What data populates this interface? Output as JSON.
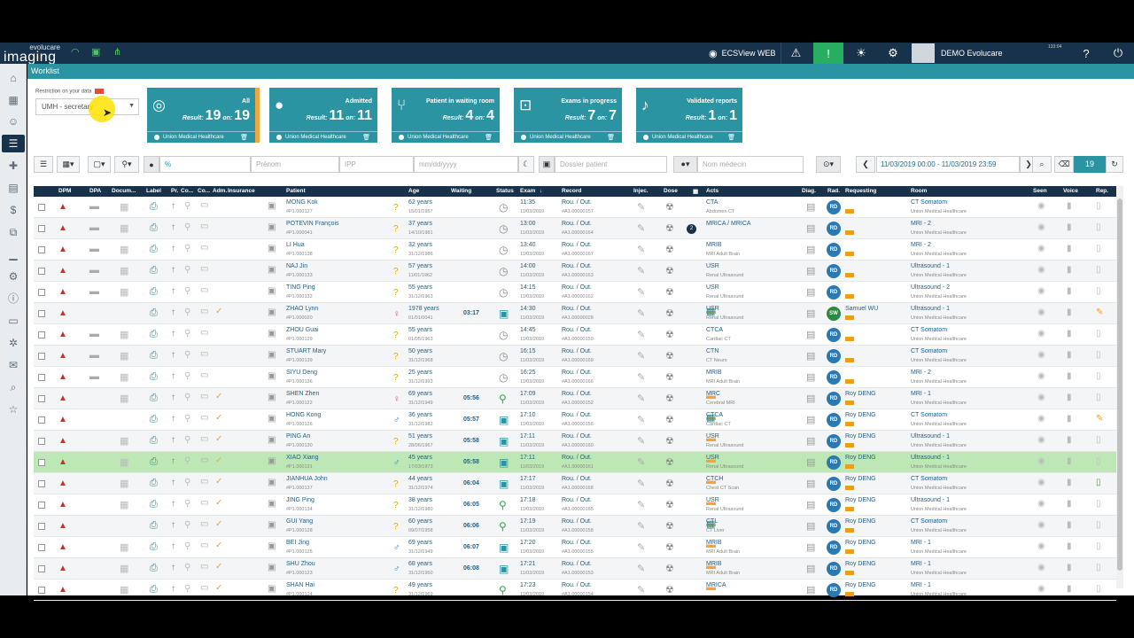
{
  "topbar": {
    "brand_top": "evolucare",
    "brand_main": "imaging",
    "app_name": "ECSView WEB",
    "user": "DEMO Evolucare",
    "clock": "133:04"
  },
  "worklist_title": "Worklist",
  "restriction": {
    "label": "Restriction on your data",
    "value": "UMH - secretary"
  },
  "cards": [
    {
      "title": "All",
      "result": "19",
      "sur": "19",
      "org": "Union Medical Healthcare",
      "icon": "all-icon"
    },
    {
      "title": "Admitted",
      "result": "11",
      "sur": "11",
      "org": "Union Medical Healthcare",
      "icon": "person-icon"
    },
    {
      "title": "Patient in waiting room",
      "result": "4",
      "sur": "4",
      "org": "Union Medical Healthcare",
      "icon": "waiting-icon"
    },
    {
      "title": "Exams in progress",
      "result": "7",
      "sur": "7",
      "org": "Union Medical Healthcare",
      "icon": "exam-icon"
    },
    {
      "title": "Validated reports",
      "result": "1",
      "sur": "1",
      "org": "Union Medical Healthcare",
      "icon": "mic-icon"
    }
  ],
  "result_label": "Result:",
  "sur_label": "on:",
  "filters": {
    "pct": "%",
    "prenom": "Prénom",
    "ipp": "IPP",
    "date": "mm/dd/yyyy",
    "dossier": "Dossier patient",
    "medecin": "Nom médecin",
    "daterange": "11/03/2019 00:00 - 11/03/2019 23:59",
    "count": "19"
  },
  "columns": {
    "dpm": "DPM",
    "dpa": "DPA",
    "doc": "Docum...",
    "label": "Label",
    "pr": "Pr.",
    "co": "Co...",
    "co2": "Co...",
    "adm": "Adm.",
    "ins": "Insurance",
    "patient": "Patient",
    "age": "Age",
    "waiting": "Waiting",
    "status": "Status",
    "exam": "Exam",
    "record": "Record",
    "injec": "Injec.",
    "dose": "Dose",
    "acts": "Acts",
    "diag": "Diag.",
    "rad": "Rad.",
    "requesting": "Requesting",
    "room": "Room",
    "seen": "Seen",
    "voice": "Voice",
    "rep": "Rep."
  },
  "rows": [
    {
      "name": "MONG Kok",
      "id": "#P1.000127",
      "sex": "u",
      "age": "62 years",
      "dob": "15/01/1957",
      "wait": "",
      "status": "clock",
      "time": "11:35",
      "date": "11/03/2019",
      "rec": "Rou. / Out.",
      "recn": "#A1.00000157",
      "badge": "",
      "act": "CTA",
      "actd": "Abdomen CT",
      "rad": "RD",
      "req": "",
      "room": "CT Somatom",
      "roomd": "Union Medical Healthcare",
      "rep": "doc",
      "adm": false
    },
    {
      "name": "POTEVIN François",
      "id": "#P1.000041",
      "sex": "u",
      "age": "37 years",
      "dob": "14/10/1981",
      "wait": "",
      "status": "clock",
      "time": "13:00",
      "date": "11/03/2019",
      "rec": "Rou. / Out.",
      "recn": "#A1.00000164",
      "badge": "2",
      "act": "MRICA / MRICA",
      "actd": "",
      "rad": "RD",
      "req": "",
      "room": "MRI - 2",
      "roomd": "Union Medical Healthcare",
      "rep": "doc",
      "adm": false
    },
    {
      "name": "LI Hua",
      "id": "#P1.000138",
      "sex": "u",
      "age": "32 years",
      "dob": "31/12/1986",
      "wait": "",
      "status": "clock",
      "time": "13:40",
      "date": "11/03/2019",
      "rec": "Rou. / Out.",
      "recn": "#A1.00000167",
      "badge": "",
      "act": "MRIB",
      "actd": "MRI Adult Brain",
      "rad": "RD",
      "req": "",
      "room": "MRI - 2",
      "roomd": "Union Medical Healthcare",
      "rep": "doc",
      "adm": false
    },
    {
      "name": "NAJ Jin",
      "id": "#P1.000133",
      "sex": "u",
      "age": "57 years",
      "dob": "11/01/1962",
      "wait": "",
      "status": "clock",
      "time": "14:00",
      "date": "11/03/2019",
      "rec": "Rou. / Out.",
      "recn": "#A1.00000163",
      "badge": "",
      "act": "USR",
      "actd": "Renal Ultrasound",
      "rad": "RD",
      "req": "",
      "room": "Ultrasound - 1",
      "roomd": "Union Medical Healthcare",
      "rep": "doc",
      "adm": false
    },
    {
      "name": "TING Ping",
      "id": "#P1.000132",
      "sex": "u",
      "age": "55 years",
      "dob": "31/12/1963",
      "wait": "",
      "status": "clock",
      "time": "14:15",
      "date": "11/03/2019",
      "rec": "Rou. / Out.",
      "recn": "#A1.00000162",
      "badge": "",
      "act": "USR",
      "actd": "Renal Ultrasound",
      "rad": "RD",
      "req": "",
      "room": "Ultrasound - 2",
      "roomd": "Union Medical Healthcare",
      "rep": "doc",
      "adm": false
    },
    {
      "name": "ZHAO Lynn",
      "id": "#P1.000020",
      "sex": "f",
      "age": "1978 years",
      "dob": "01/01/0041",
      "wait": "03:17",
      "status": "blue",
      "time": "14:30",
      "date": "11/03/2019",
      "rec": "Rou. / Out.",
      "recn": "#A1.00000028",
      "badge": "",
      "act": "USR",
      "actd": "Renal Ultrasound",
      "rad": "SW",
      "req": "Samuel WU",
      "room": "Ultrasound - 1",
      "roomd": "Union Medical Healthcare",
      "rep": "orange",
      "adm": true
    },
    {
      "name": "ZHOU Guai",
      "id": "#P1.000129",
      "sex": "u",
      "age": "55 years",
      "dob": "01/05/1963",
      "wait": "",
      "status": "clock",
      "time": "14:45",
      "date": "11/03/2019",
      "rec": "Rou. / Out.",
      "recn": "#A1.00000159",
      "badge": "",
      "act": "CTCA",
      "actd": "Cardiac CT",
      "rad": "RD",
      "req": "",
      "room": "CT Somatom",
      "roomd": "Union Medical Healthcare",
      "rep": "doc",
      "adm": false
    },
    {
      "name": "STUART Mary",
      "id": "#P1.000139",
      "sex": "u",
      "age": "50 years",
      "dob": "31/12/1968",
      "wait": "",
      "status": "clock",
      "time": "16:15",
      "date": "11/03/2019",
      "rec": "Rou. / Out.",
      "recn": "#A1.00000169",
      "badge": "",
      "act": "CTN",
      "actd": "CT Neuro",
      "rad": "RD",
      "req": "",
      "room": "CT Somatom",
      "roomd": "Union Medical Healthcare",
      "rep": "doc",
      "adm": false
    },
    {
      "name": "SIYU Deng",
      "id": "#P1.000136",
      "sex": "u",
      "age": "25 years",
      "dob": "31/12/1993",
      "wait": "",
      "status": "clock",
      "time": "16:25",
      "date": "11/03/2019",
      "rec": "Rou. / Out.",
      "recn": "#A1.00000166",
      "badge": "",
      "act": "MRIB",
      "actd": "MRI Adult Brain",
      "rad": "RD",
      "req": "",
      "room": "MRI - 2",
      "roomd": "Union Medical Healthcare",
      "rep": "doc",
      "adm": false
    },
    {
      "name": "SHEN Zhen",
      "id": "#P1.000122",
      "sex": "f",
      "age": "69 years",
      "dob": "31/12/1949",
      "wait": "05:56",
      "status": "green",
      "time": "17:09",
      "date": "11/03/2019",
      "rec": "Rou. / Out.",
      "recn": "#A1.00000152",
      "badge": "",
      "act": "MRC",
      "actd": "Cerebral MRI",
      "rad": "RD",
      "req": "Roy DENG",
      "room": "MRI - 1",
      "roomd": "Union Medical Healthcare",
      "rep": "doc",
      "adm": true
    },
    {
      "name": "HONG Kong",
      "id": "#P1.000126",
      "sex": "m",
      "age": "36 years",
      "dob": "31/12/1982",
      "wait": "05:57",
      "status": "blue",
      "time": "17:10",
      "date": "11/03/2019",
      "rec": "Rou. / Out.",
      "recn": "#A1.00000156",
      "badge": "",
      "act": "CTCA",
      "actd": "Cardiac CT",
      "rad": "RD",
      "req": "Roy DENG",
      "room": "CT Somatom",
      "roomd": "Union Medical Healthcare",
      "rep": "orange",
      "adm": true
    },
    {
      "name": "PING An",
      "id": "#P1.000130",
      "sex": "u",
      "age": "51 years",
      "dob": "28/06/1967",
      "wait": "05:58",
      "status": "blue",
      "time": "17:11",
      "date": "11/03/2019",
      "rec": "Rou. / Out.",
      "recn": "#A1.00000160",
      "badge": "",
      "act": "USR",
      "actd": "Renal Ultrasound",
      "rad": "RD",
      "req": "Roy DENG",
      "room": "Ultrasound - 1",
      "roomd": "Union Medical Healthcare",
      "rep": "doc",
      "adm": true
    },
    {
      "name": "XIAO Xiang",
      "id": "#P1.000131",
      "sex": "m",
      "age": "45 years",
      "dob": "17/03/1973",
      "wait": "05:58",
      "status": "blue",
      "time": "17:11",
      "date": "11/03/2019",
      "rec": "Rou. / Out.",
      "recn": "#A1.00000161",
      "badge": "",
      "act": "USR",
      "actd": "Renal Ultrasound",
      "rad": "RD",
      "req": "Roy DENG",
      "room": "Ultrasound - 1",
      "roomd": "Union Medical Healthcare",
      "rep": "doc",
      "adm": true,
      "hl": true
    },
    {
      "name": "JIANHUA John",
      "id": "#P1.000137",
      "sex": "u",
      "age": "44 years",
      "dob": "31/12/1974",
      "wait": "06:04",
      "status": "blue",
      "time": "17:17",
      "date": "11/03/2019",
      "rec": "Rou. / Out.",
      "recn": "#A1.00000168",
      "badge": "",
      "act": "CTCH",
      "actd": "Chest CT Scan",
      "rad": "RD",
      "req": "Roy DENG",
      "room": "CT Somatom",
      "roomd": "Union Medical Healthcare",
      "rep": "green",
      "adm": true
    },
    {
      "name": "JING Ping",
      "id": "#P1.000134",
      "sex": "u",
      "age": "38 years",
      "dob": "31/12/1980",
      "wait": "06:05",
      "status": "green",
      "time": "17:18",
      "date": "11/03/2019",
      "rec": "Rou. / Out.",
      "recn": "#A1.00000165",
      "badge": "",
      "act": "USR",
      "actd": "Renal Ultrasound",
      "rad": "RD",
      "req": "Roy DENG",
      "room": "Ultrasound - 1",
      "roomd": "Union Medical Healthcare",
      "rep": "doc",
      "adm": true
    },
    {
      "name": "GUI Yang",
      "id": "#P1.000128",
      "sex": "u",
      "age": "60 years",
      "dob": "09/07/1958",
      "wait": "06:06",
      "status": "green",
      "time": "17:19",
      "date": "11/03/2019",
      "rec": "Rou. / Out.",
      "recn": "#A1.00000158",
      "badge": "",
      "act": "CTL",
      "actd": "CT Liver",
      "rad": "RD",
      "req": "Roy DENG",
      "room": "CT Somatom",
      "roomd": "Union Medical Healthcare",
      "rep": "doc",
      "adm": true
    },
    {
      "name": "BEI Jing",
      "id": "#P1.000125",
      "sex": "m",
      "age": "69 years",
      "dob": "31/12/1949",
      "wait": "06:07",
      "status": "blue",
      "time": "17:20",
      "date": "11/03/2019",
      "rec": "Rou. / Out.",
      "recn": "#A1.00000155",
      "badge": "",
      "act": "MRIB",
      "actd": "MRI Adult Brain",
      "rad": "RD",
      "req": "Roy DENG",
      "room": "MRI - 1",
      "roomd": "Union Medical Healthcare",
      "rep": "doc",
      "adm": true
    },
    {
      "name": "SHU Zhou",
      "id": "#P1.000123",
      "sex": "m",
      "age": "68 years",
      "dob": "31/12/1950",
      "wait": "06:08",
      "status": "blue",
      "time": "17:21",
      "date": "11/03/2019",
      "rec": "Rou. / Out.",
      "recn": "#A1.00000153",
      "badge": "",
      "act": "MRIB",
      "actd": "MRI Adult Brain",
      "rad": "RD",
      "req": "Roy DENG",
      "room": "MRI - 1",
      "roomd": "Union Medical Healthcare",
      "rep": "doc",
      "adm": true
    },
    {
      "name": "SHAN Hai",
      "id": "#P1.000124",
      "sex": "u",
      "age": "49 years",
      "dob": "31/12/1969",
      "wait": "",
      "status": "green",
      "time": "17:23",
      "date": "11/03/2019",
      "rec": "Rou. / Out.",
      "recn": "#A1.00000154",
      "badge": "",
      "act": "MRICA",
      "actd": "",
      "rad": "RD",
      "req": "Roy DENG",
      "room": "MRI - 1",
      "roomd": "Union Medical Healthcare",
      "rep": "doc",
      "adm": true
    }
  ]
}
